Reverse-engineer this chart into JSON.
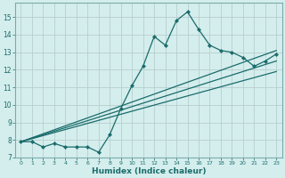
{
  "xlabel": "Humidex (Indice chaleur)",
  "bg_color": "#d4eeed",
  "grid_color": "#b8cece",
  "line_color": "#1a6b6b",
  "xlim": [
    -0.5,
    23.5
  ],
  "ylim": [
    7,
    15.8
  ],
  "xticks": [
    0,
    1,
    2,
    3,
    4,
    5,
    6,
    7,
    8,
    9,
    10,
    11,
    12,
    13,
    14,
    15,
    16,
    17,
    18,
    19,
    20,
    21,
    22,
    23
  ],
  "yticks": [
    7,
    8,
    9,
    10,
    11,
    12,
    13,
    14,
    15
  ],
  "series": [
    {
      "x": [
        0,
        1,
        2,
        3,
        4,
        5,
        6,
        7,
        8,
        9,
        10,
        11,
        12,
        13,
        14,
        15,
        16,
        17,
        18,
        19,
        20,
        21,
        22,
        23
      ],
      "y": [
        7.9,
        7.9,
        7.6,
        7.8,
        7.6,
        7.6,
        7.6,
        7.3,
        8.3,
        9.8,
        11.1,
        12.2,
        13.9,
        13.4,
        14.8,
        15.3,
        14.3,
        13.4,
        13.1,
        13.0,
        12.7,
        12.2,
        12.5,
        12.9
      ],
      "marker": "D",
      "markersize": 2.2,
      "linewidth": 0.9,
      "has_marker": true
    },
    {
      "x": [
        0,
        23
      ],
      "y": [
        7.9,
        13.1
      ],
      "linewidth": 0.9,
      "has_marker": false
    },
    {
      "x": [
        0,
        23
      ],
      "y": [
        7.9,
        12.5
      ],
      "linewidth": 0.9,
      "has_marker": false
    },
    {
      "x": [
        0,
        23
      ],
      "y": [
        7.9,
        11.9
      ],
      "linewidth": 0.9,
      "has_marker": false
    }
  ]
}
